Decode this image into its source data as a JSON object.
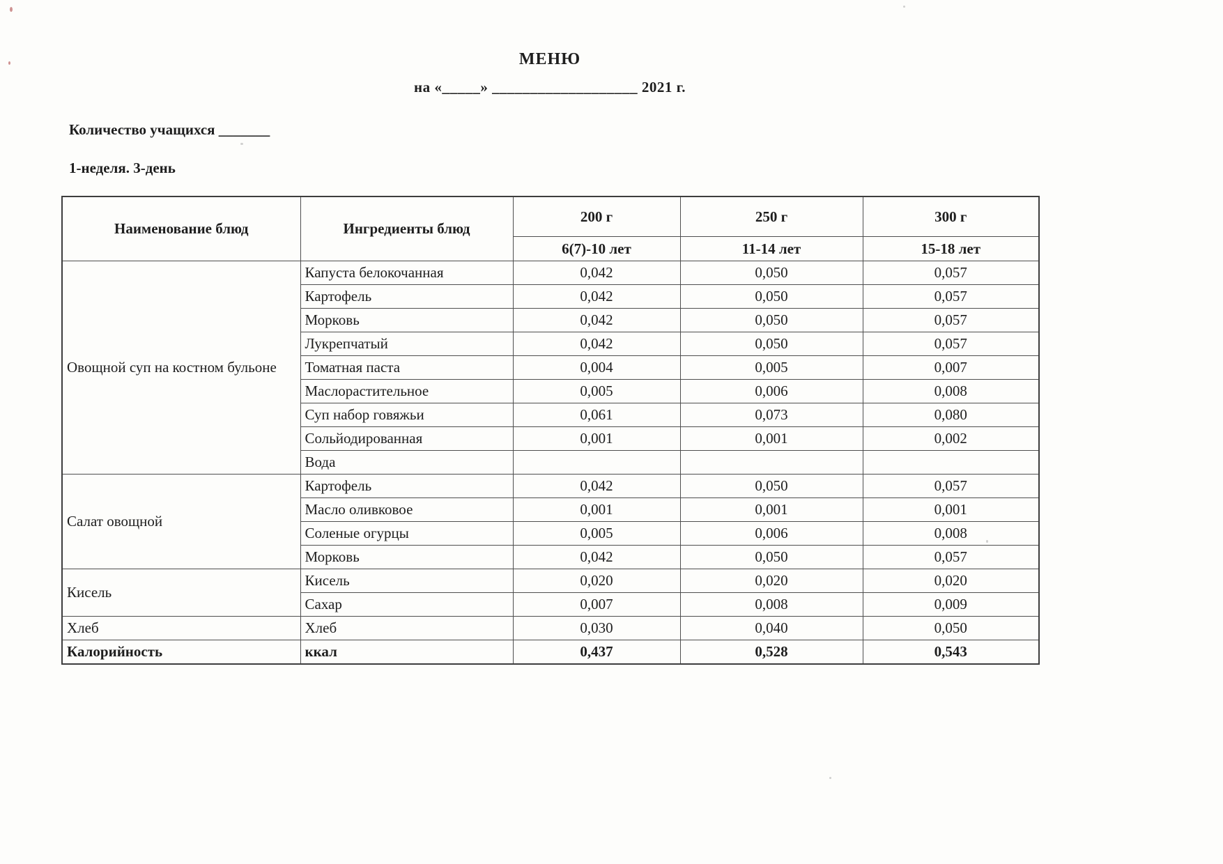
{
  "document": {
    "title": "МЕНЮ",
    "subtitle": "на «_____» ___________________ 2021 г.",
    "students_line": "Количество учащихся _______",
    "week_line": "1-неделя. 3-день"
  },
  "table": {
    "headers": {
      "dish": "Наименование блюд",
      "ingredients": "Ингредиенты блюд",
      "portions": [
        "200 г",
        "250 г",
        "300 г"
      ],
      "ages": [
        "6(7)-10 лет",
        "11-14 лет",
        "15-18 лет"
      ]
    },
    "groups": [
      {
        "dish": "Овощной суп на костном бульоне",
        "rows": [
          {
            "ingredient": "Капуста белокочанная",
            "values": [
              "0,042",
              "0,050",
              "0,057"
            ]
          },
          {
            "ingredient": "Картофель",
            "values": [
              "0,042",
              "0,050",
              "0,057"
            ]
          },
          {
            "ingredient": "Морковь",
            "values": [
              "0,042",
              "0,050",
              "0,057"
            ]
          },
          {
            "ingredient": "Лукрепчатый",
            "values": [
              "0,042",
              "0,050",
              "0,057"
            ]
          },
          {
            "ingredient": "Томатная паста",
            "values": [
              "0,004",
              "0,005",
              "0,007"
            ]
          },
          {
            "ingredient": "Маслорастительное",
            "values": [
              "0,005",
              "0,006",
              "0,008"
            ]
          },
          {
            "ingredient": "Суп набор говяжьи",
            "values": [
              "0,061",
              "0,073",
              "0,080"
            ]
          },
          {
            "ingredient": "Сольйодированная",
            "values": [
              "0,001",
              "0,001",
              "0,002"
            ]
          },
          {
            "ingredient": "Вода",
            "values": [
              "",
              "",
              ""
            ]
          }
        ]
      },
      {
        "dish": "Салат овощной",
        "rows": [
          {
            "ingredient": "Картофель",
            "values": [
              "0,042",
              "0,050",
              "0,057"
            ]
          },
          {
            "ingredient": "Масло оливковое",
            "values": [
              "0,001",
              "0,001",
              "0,001"
            ]
          },
          {
            "ingredient": "Соленые огурцы",
            "values": [
              "0,005",
              "0,006",
              "0,008"
            ]
          },
          {
            "ingredient": "Морковь",
            "values": [
              "0,042",
              "0,050",
              "0,057"
            ]
          }
        ]
      },
      {
        "dish": "Кисель",
        "rows": [
          {
            "ingredient": "Кисель",
            "values": [
              "0,020",
              "0,020",
              "0,020"
            ]
          },
          {
            "ingredient": "Сахар",
            "values": [
              "0,007",
              "0,008",
              "0,009"
            ]
          }
        ]
      },
      {
        "dish": "Хлеб",
        "rows": [
          {
            "ingredient": "Хлеб",
            "values": [
              "0,030",
              "0,040",
              "0,050"
            ]
          }
        ]
      }
    ],
    "total_row": {
      "dish": "Калорийность",
      "ingredient": "ккал",
      "values": [
        "0,437",
        "0,528",
        "0,543"
      ]
    }
  }
}
